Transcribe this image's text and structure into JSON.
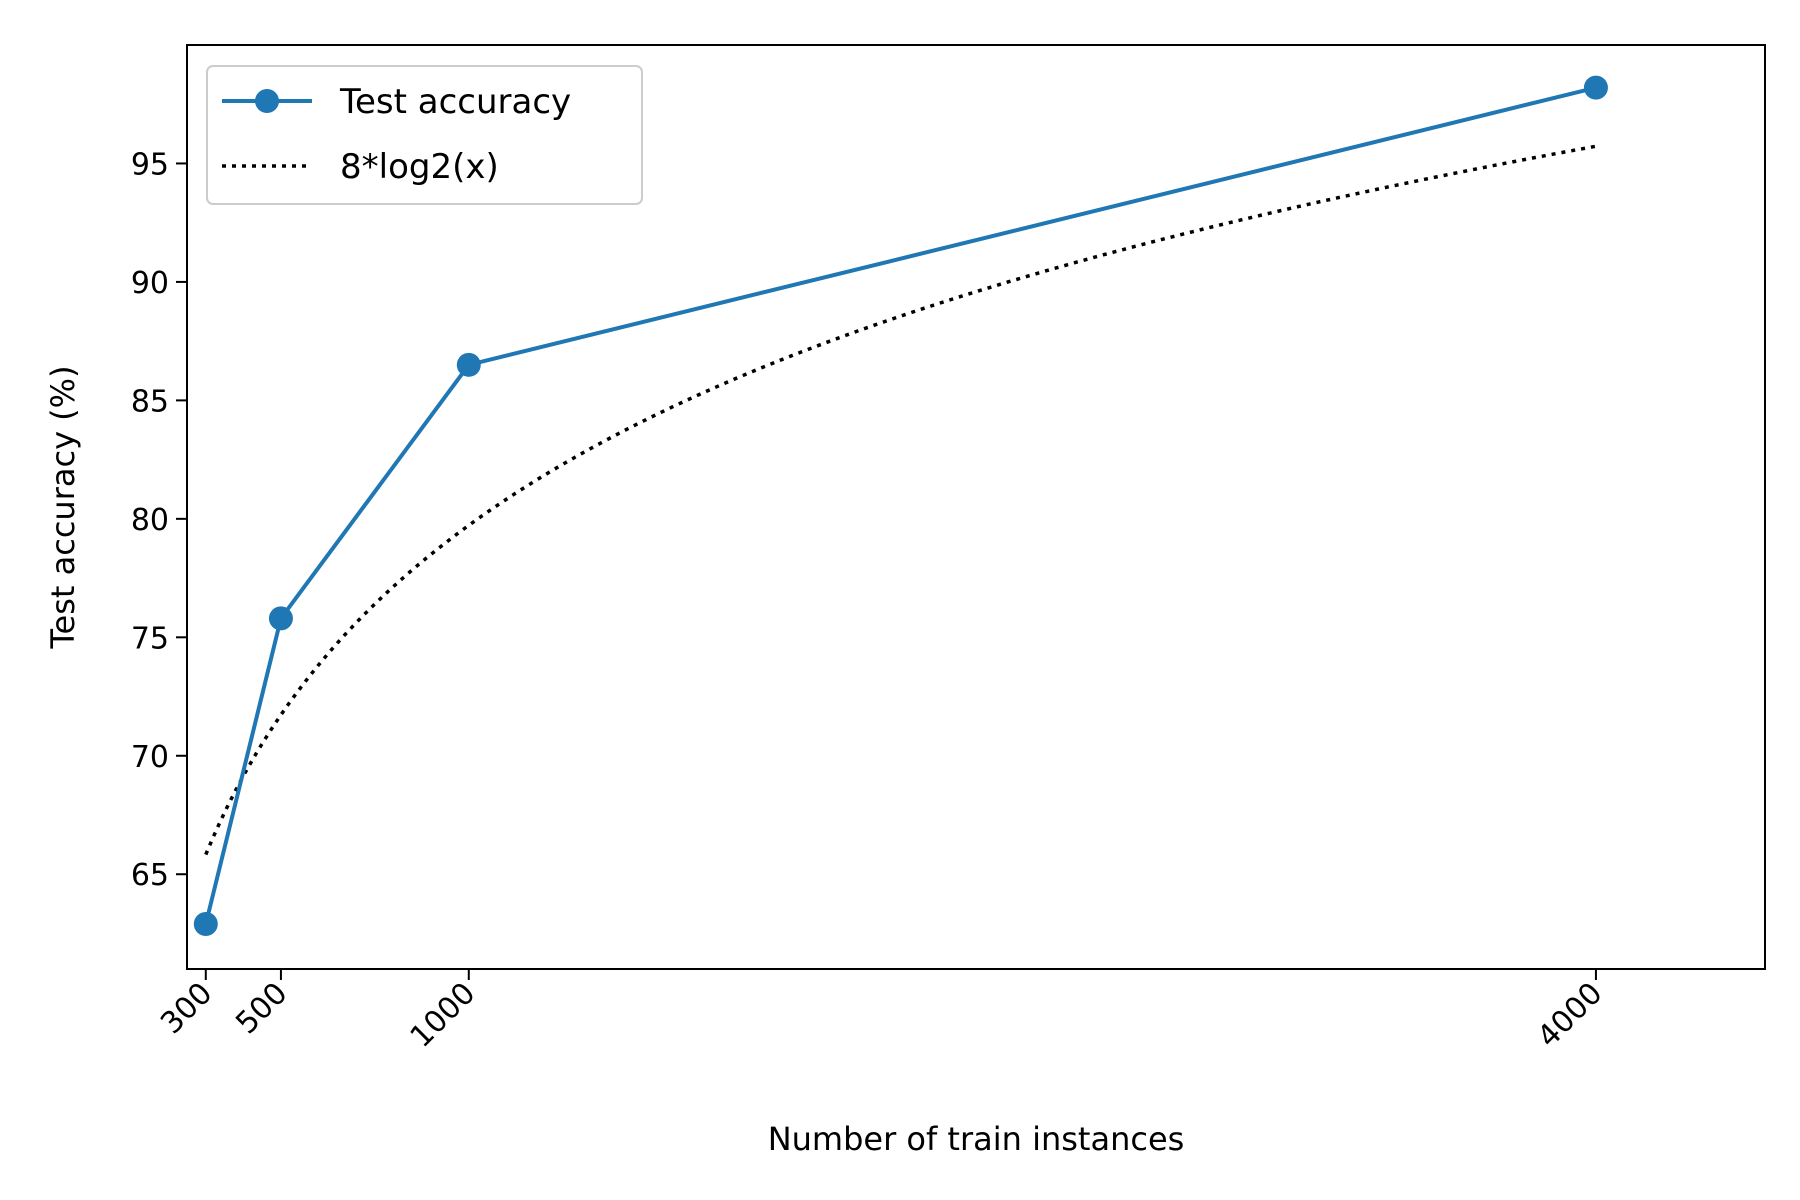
{
  "chart_data": {
    "type": "line",
    "xlabel": "Number of train instances",
    "ylabel": "Test accuracy (%)",
    "xlim": [
      250,
      4450
    ],
    "ylim": [
      61,
      100
    ],
    "x_ticks": [
      300,
      500,
      1000,
      4000
    ],
    "y_ticks": [
      65,
      70,
      75,
      80,
      85,
      90,
      95
    ],
    "grid": false,
    "legend_position": "top-left",
    "series": [
      {
        "name": "Test accuracy",
        "style": "solid-with-markers",
        "color": "#1f77b4",
        "x": [
          300,
          500,
          1000,
          4000
        ],
        "y": [
          62.9,
          75.8,
          86.5,
          98.2
        ]
      },
      {
        "name": "8*log2(x)",
        "style": "dotted",
        "color": "#000000",
        "function": "8*log2(x)",
        "x_range": [
          300,
          4000
        ]
      }
    ]
  }
}
